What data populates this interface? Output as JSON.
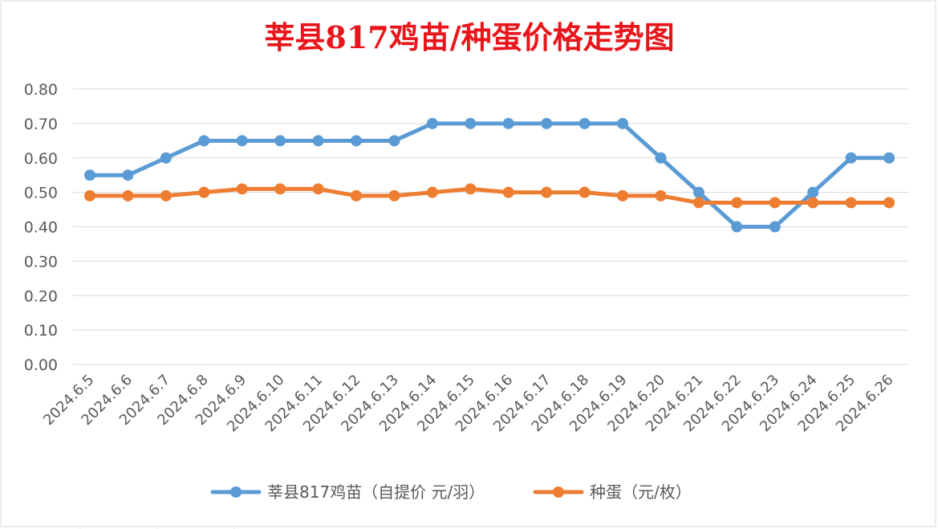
{
  "chart_data": {
    "type": "line",
    "title": "莘县817鸡苗/种蛋价格走势图",
    "categories": [
      "2024.6.5",
      "2024.6.6",
      "2024.6.7",
      "2024.6.8",
      "2024.6.9",
      "2024.6.10",
      "2024.6.11",
      "2024.6.12",
      "2024.6.13",
      "2024.6.14",
      "2024.6.15",
      "2024.6.16",
      "2024.6.17",
      "2024.6.18",
      "2024.6.19",
      "2024.6.20",
      "2024.6.21",
      "2024.6.22",
      "2024.6.23",
      "2024.6.24",
      "2024.6.25",
      "2024.6.26"
    ],
    "yticks": [
      "0.00",
      "0.10",
      "0.20",
      "0.30",
      "0.40",
      "0.50",
      "0.60",
      "0.70",
      "0.80"
    ],
    "ylim": [
      0,
      0.8
    ],
    "grid": true,
    "legend_position": "bottom",
    "series": [
      {
        "name": "莘县817鸡苗（自提价 元/羽）",
        "color": "#5b9bd5",
        "values": [
          0.55,
          0.55,
          0.6,
          0.65,
          0.65,
          0.65,
          0.65,
          0.65,
          0.65,
          0.7,
          0.7,
          0.7,
          0.7,
          0.7,
          0.7,
          0.6,
          0.5,
          0.4,
          0.4,
          0.5,
          0.6,
          0.6
        ]
      },
      {
        "name": "种蛋（元/枚）",
        "color": "#ed7d31",
        "values": [
          0.49,
          0.49,
          0.49,
          0.5,
          0.51,
          0.51,
          0.51,
          0.49,
          0.49,
          0.5,
          0.51,
          0.5,
          0.5,
          0.5,
          0.49,
          0.49,
          0.47,
          0.47,
          0.47,
          0.47,
          0.47,
          0.47
        ]
      }
    ]
  }
}
